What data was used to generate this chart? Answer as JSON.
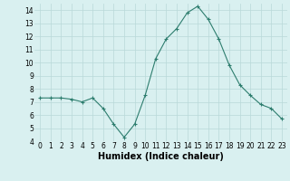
{
  "x": [
    0,
    1,
    2,
    3,
    4,
    5,
    6,
    7,
    8,
    9,
    10,
    11,
    12,
    13,
    14,
    15,
    16,
    17,
    18,
    19,
    20,
    21,
    22,
    23
  ],
  "y": [
    7.3,
    7.3,
    7.3,
    7.2,
    7.0,
    7.3,
    6.5,
    5.3,
    4.3,
    5.3,
    7.5,
    10.3,
    11.8,
    12.6,
    13.8,
    14.3,
    13.3,
    11.8,
    9.8,
    8.3,
    7.5,
    6.8,
    6.5,
    5.7
  ],
  "xlabel": "Humidex (Indice chaleur)",
  "ylim": [
    4,
    14.5
  ],
  "yticks": [
    4,
    5,
    6,
    7,
    8,
    9,
    10,
    11,
    12,
    13,
    14
  ],
  "xticks": [
    0,
    1,
    2,
    3,
    4,
    5,
    6,
    7,
    8,
    9,
    10,
    11,
    12,
    13,
    14,
    15,
    16,
    17,
    18,
    19,
    20,
    21,
    22,
    23
  ],
  "line_color": "#2d7d6e",
  "marker": "+",
  "background_color": "#d9f0f0",
  "grid_color": "#b8d8d8",
  "tick_label_fontsize": 5.5,
  "xlabel_fontsize": 7.0
}
